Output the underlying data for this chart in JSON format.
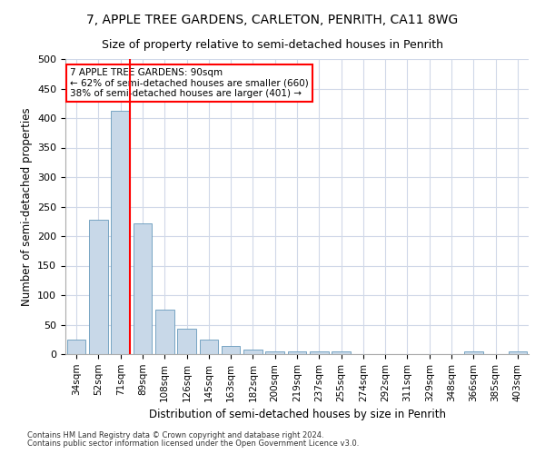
{
  "title_line1": "7, APPLE TREE GARDENS, CARLETON, PENRITH, CA11 8WG",
  "title_line2": "Size of property relative to semi-detached houses in Penrith",
  "xlabel": "Distribution of semi-detached houses by size in Penrith",
  "ylabel": "Number of semi-detached properties",
  "bar_values": [
    25,
    228,
    412,
    222,
    76,
    43,
    24,
    14,
    8,
    5,
    5,
    5,
    5,
    0,
    0,
    0,
    0,
    0,
    5,
    0,
    5
  ],
  "categories": [
    "34sqm",
    "52sqm",
    "71sqm",
    "89sqm",
    "108sqm",
    "126sqm",
    "145sqm",
    "163sqm",
    "182sqm",
    "200sqm",
    "219sqm",
    "237sqm",
    "255sqm",
    "274sqm",
    "292sqm",
    "311sqm",
    "329sqm",
    "348sqm",
    "366sqm",
    "385sqm",
    "403sqm"
  ],
  "bar_color": "#c8d8e8",
  "bar_edge_color": "#6699bb",
  "highlight_line_color": "red",
  "annotation_text": "7 APPLE TREE GARDENS: 90sqm\n← 62% of semi-detached houses are smaller (660)\n38% of semi-detached houses are larger (401) →",
  "footnote1": "Contains HM Land Registry data © Crown copyright and database right 2024.",
  "footnote2": "Contains public sector information licensed under the Open Government Licence v3.0.",
  "ylim": [
    0,
    500
  ],
  "yticks": [
    0,
    50,
    100,
    150,
    200,
    250,
    300,
    350,
    400,
    450,
    500
  ],
  "background_color": "#ffffff",
  "grid_color": "#d0d8e8"
}
